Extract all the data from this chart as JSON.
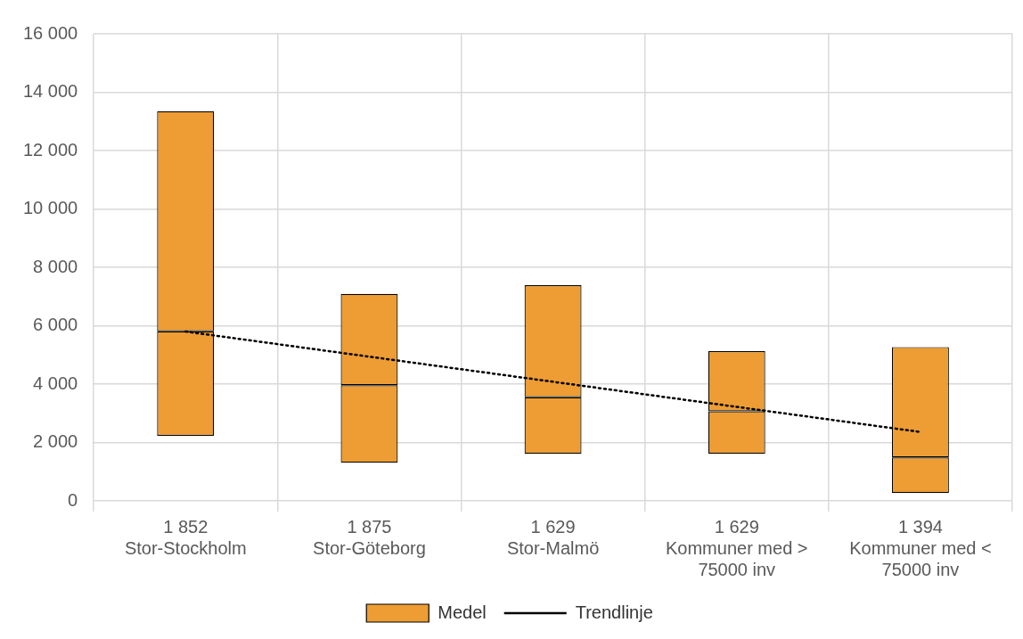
{
  "chart_data": {
    "type": "bar",
    "categories": [
      "1 852\nStor-Stockholm",
      "1 875\nStor-Göteborg",
      "1 629\nStor-Malmö",
      "1 629\nKommuner med >\n75000 inv",
      "1 394\nKommuner med <\n75000 inv"
    ],
    "series": [
      {
        "name": "Medel",
        "color": "#ed9d33",
        "base": [
          2230,
          1310,
          1610,
          1610,
          270
        ],
        "values": [
          3580,
          2650,
          1940,
          1460,
          1220
        ]
      },
      {
        "color": "#ed9d33",
        "base": [
          5810,
          3960,
          3550,
          3070,
          1490
        ],
        "values": [
          7540,
          3130,
          3840,
          2060,
          3780
        ]
      },
      {
        "name": "Trendlinje",
        "type": "line",
        "color": "#000000",
        "line_style": "dotted",
        "marker": "none",
        "values": [
          5800,
          4940,
          4080,
          3220,
          2360
        ]
      }
    ],
    "ylim": [
      0,
      16000
    ],
    "yticks": [
      {
        "value": 0,
        "label": "0"
      },
      {
        "value": 2000,
        "label": "2 000"
      },
      {
        "value": 4000,
        "label": "4 000"
      },
      {
        "value": 6000,
        "label": "6 000"
      },
      {
        "value": 8000,
        "label": "8 000"
      },
      {
        "value": 10000,
        "label": "10 000"
      },
      {
        "value": 12000,
        "label": "12 000"
      },
      {
        "value": 14000,
        "label": "14 000"
      },
      {
        "value": 16000,
        "label": "16 000"
      }
    ],
    "grid": true,
    "legend": "bottom"
  }
}
